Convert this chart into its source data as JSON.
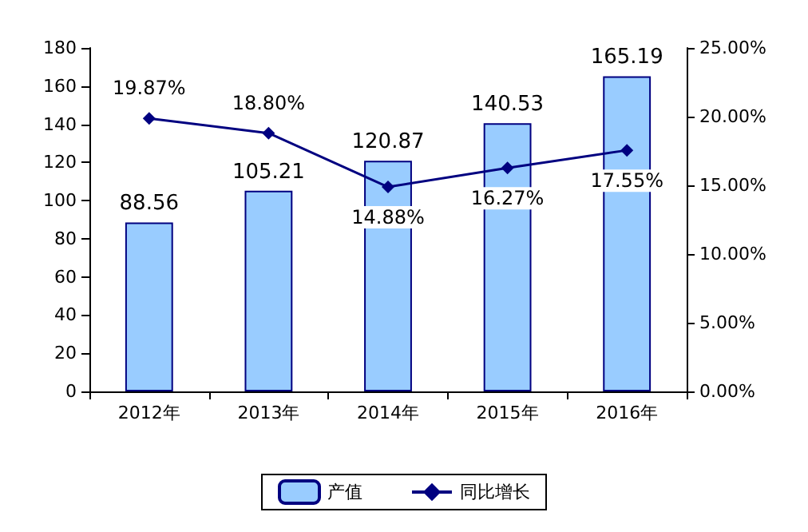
{
  "chart_data": {
    "type": "bar",
    "categories": [
      "2012年",
      "2013年",
      "2014年",
      "2015年",
      "2016年"
    ],
    "series": [
      {
        "name": "产值",
        "color": "#99ccff",
        "values": [
          88.56,
          105.21,
          120.87,
          140.53,
          165.19
        ],
        "value_labels": [
          "88.56",
          "105.21",
          "120.87",
          "140.53",
          "165.19"
        ]
      },
      {
        "name": "同比增长",
        "type": "line",
        "axis": "y2",
        "color": "#000080",
        "values": [
          19.87,
          18.8,
          14.88,
          16.27,
          17.55
        ],
        "value_labels": [
          "19.87%",
          "18.80%",
          "14.88%",
          "16.27%",
          "17.55%"
        ]
      }
    ],
    "ylim": [
      0,
      180
    ],
    "yticks": [
      0,
      20,
      40,
      60,
      80,
      100,
      120,
      140,
      160,
      180
    ],
    "y2lim": [
      0,
      25
    ],
    "y2ticks": [
      {
        "value": 0,
        "label": "0.00%"
      },
      {
        "value": 5,
        "label": "5.00%"
      },
      {
        "value": 10,
        "label": "10.00%"
      },
      {
        "value": 15,
        "label": "15.00%"
      },
      {
        "value": 20,
        "label": "20.00%"
      },
      {
        "value": 25,
        "label": "25.00%"
      }
    ],
    "legend": "bottom",
    "grid": false,
    "marker": "diamond"
  }
}
